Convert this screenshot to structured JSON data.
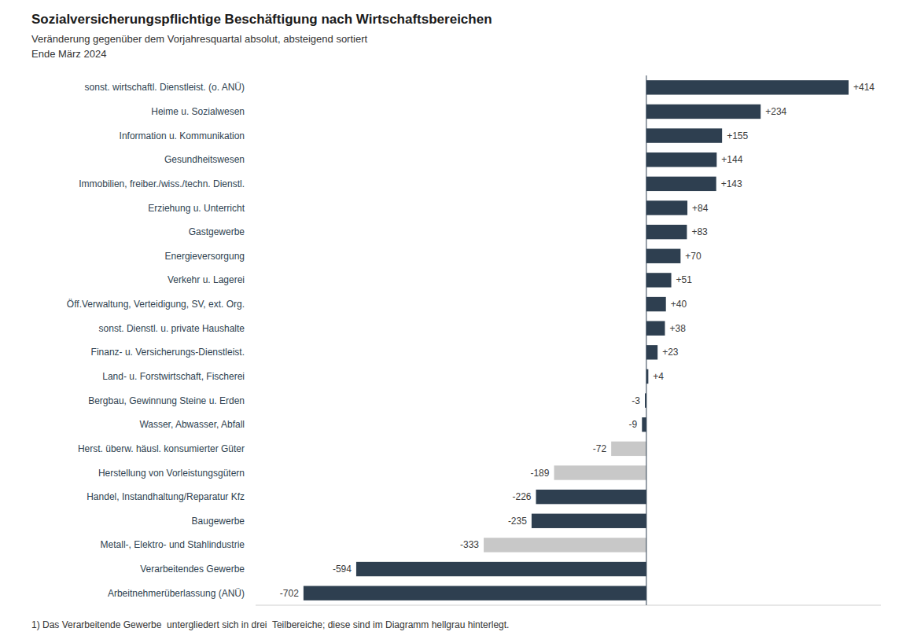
{
  "chart_data": {
    "type": "bar",
    "orientation": "horizontal",
    "title": "Sozialversicherungspflichtige Beschäftigung nach Wirtschaftsbereichen",
    "subtitle": [
      "Veränderung gegenüber dem Vorjahresquartal absolut, absteigend sortiert",
      "Ende März 2024"
    ],
    "annotations": [
      "1) Das Verarbeitende Gewerbe  untergliedert sich in drei  Teilbereiche; diese sind im Diagramm hellgrau hinterlegt."
    ],
    "categories": [
      "sonst. wirtschaftl. Dienstleist. (o. ANÜ)",
      "Heime u. Sozialwesen",
      "Information u. Kommunikation",
      "Gesundheitswesen",
      "Immobilien, freiber./wiss./techn. Dienstl.",
      "Erziehung u. Unterricht",
      "Gastgewerbe",
      "Energieversorgung",
      "Verkehr u. Lagerei",
      "Öff.Verwaltung, Verteidigung, SV, ext. Org.",
      "sonst. Dienstl. u. private Haushalte",
      "Finanz- u. Versicherungs-Dienstleist.",
      "Land- u. Forstwirtschaft, Fischerei",
      "Bergbau, Gewinnung Steine u. Erden",
      "Wasser, Abwasser, Abfall",
      "Herst. überw. häusl. konsumierter Güter",
      "Herstellung von Vorleistungsgütern",
      "Handel, Instandhaltung/Reparatur Kfz",
      "Baugewerbe",
      "Metall-, Elektro- und Stahlindustrie",
      "Verarbeitendes Gewerbe",
      "Arbeitnehmerüberlassung (ANÜ)"
    ],
    "values": [
      414,
      234,
      155,
      144,
      143,
      84,
      83,
      70,
      51,
      40,
      38,
      23,
      4,
      -3,
      -9,
      -72,
      -189,
      -226,
      -235,
      -333,
      -594,
      -702
    ],
    "value_labels": [
      "+414",
      "+234",
      "+155",
      "+144",
      "+143",
      "+84",
      "+83",
      "+70",
      "+51",
      "+40",
      "+38",
      "+23",
      "+4",
      "-3",
      "-9",
      "-72",
      "-189",
      "-226",
      "-235",
      "-333",
      "-594",
      "-702"
    ],
    "colors": [
      "#2e3f50",
      "#2e3f50",
      "#2e3f50",
      "#2e3f50",
      "#2e3f50",
      "#2e3f50",
      "#2e3f50",
      "#2e3f50",
      "#2e3f50",
      "#2e3f50",
      "#2e3f50",
      "#2e3f50",
      "#2e3f50",
      "#2e3f50",
      "#2e3f50",
      "#c8c8c8",
      "#c8c8c8",
      "#2e3f50",
      "#2e3f50",
      "#c8c8c8",
      "#2e3f50",
      "#2e3f50"
    ],
    "xlim": [
      -800,
      480
    ],
    "data_labels": true,
    "tick_labels": "y",
    "grid": false
  }
}
